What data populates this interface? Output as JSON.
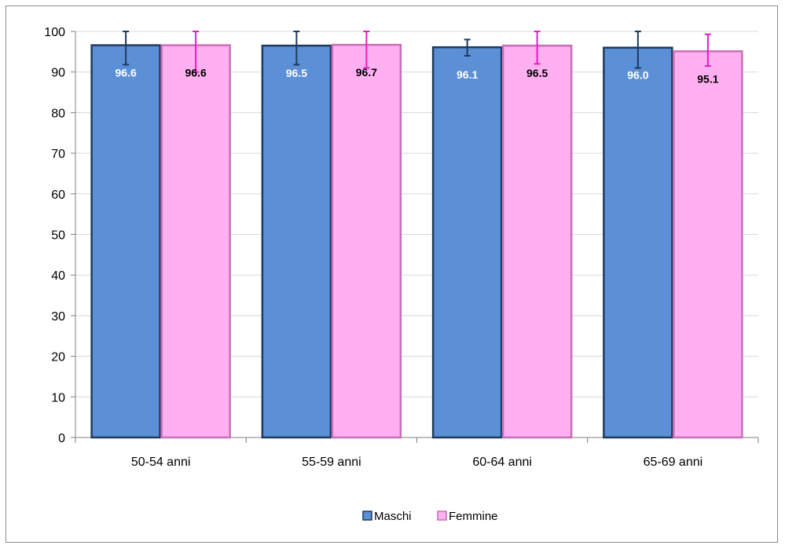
{
  "chart_data": {
    "type": "bar",
    "categories": [
      "50-54 anni",
      "55-59 anni",
      "60-64 anni",
      "65-69 anni"
    ],
    "series": [
      {
        "name": "Maschi",
        "values": [
          96.6,
          96.5,
          96.1,
          96.0
        ],
        "error_low": [
          91.8,
          91.8,
          94.0,
          91.0
        ],
        "error_high": [
          100,
          100,
          98.0,
          100
        ],
        "color": "#5b8fd6",
        "border": "#1f3a5f",
        "label_color": "#ffffff",
        "error_color": "#1f3a5f"
      },
      {
        "name": "Femmine",
        "values": [
          96.6,
          96.7,
          96.5,
          95.1
        ],
        "error_low": [
          90.0,
          91.0,
          92.0,
          91.5
        ],
        "error_high": [
          100,
          100,
          100,
          99.3
        ],
        "color": "#ffb0f0",
        "border": "#c86fb8",
        "label_color": "#000000",
        "error_color": "#e020c0"
      }
    ],
    "ylim": [
      0,
      100
    ],
    "yticks": [
      "0",
      "10",
      "20",
      "30",
      "40",
      "50",
      "60",
      "70",
      "80",
      "90",
      "100"
    ],
    "data_labels": [
      [
        "96.6",
        "96.5",
        "96.1",
        "96.0"
      ],
      [
        "96.6",
        "96.7",
        "96.5",
        "95.1"
      ]
    ],
    "grid": true,
    "legend": "bottom-center",
    "title": "",
    "xlabel": "",
    "ylabel": ""
  }
}
